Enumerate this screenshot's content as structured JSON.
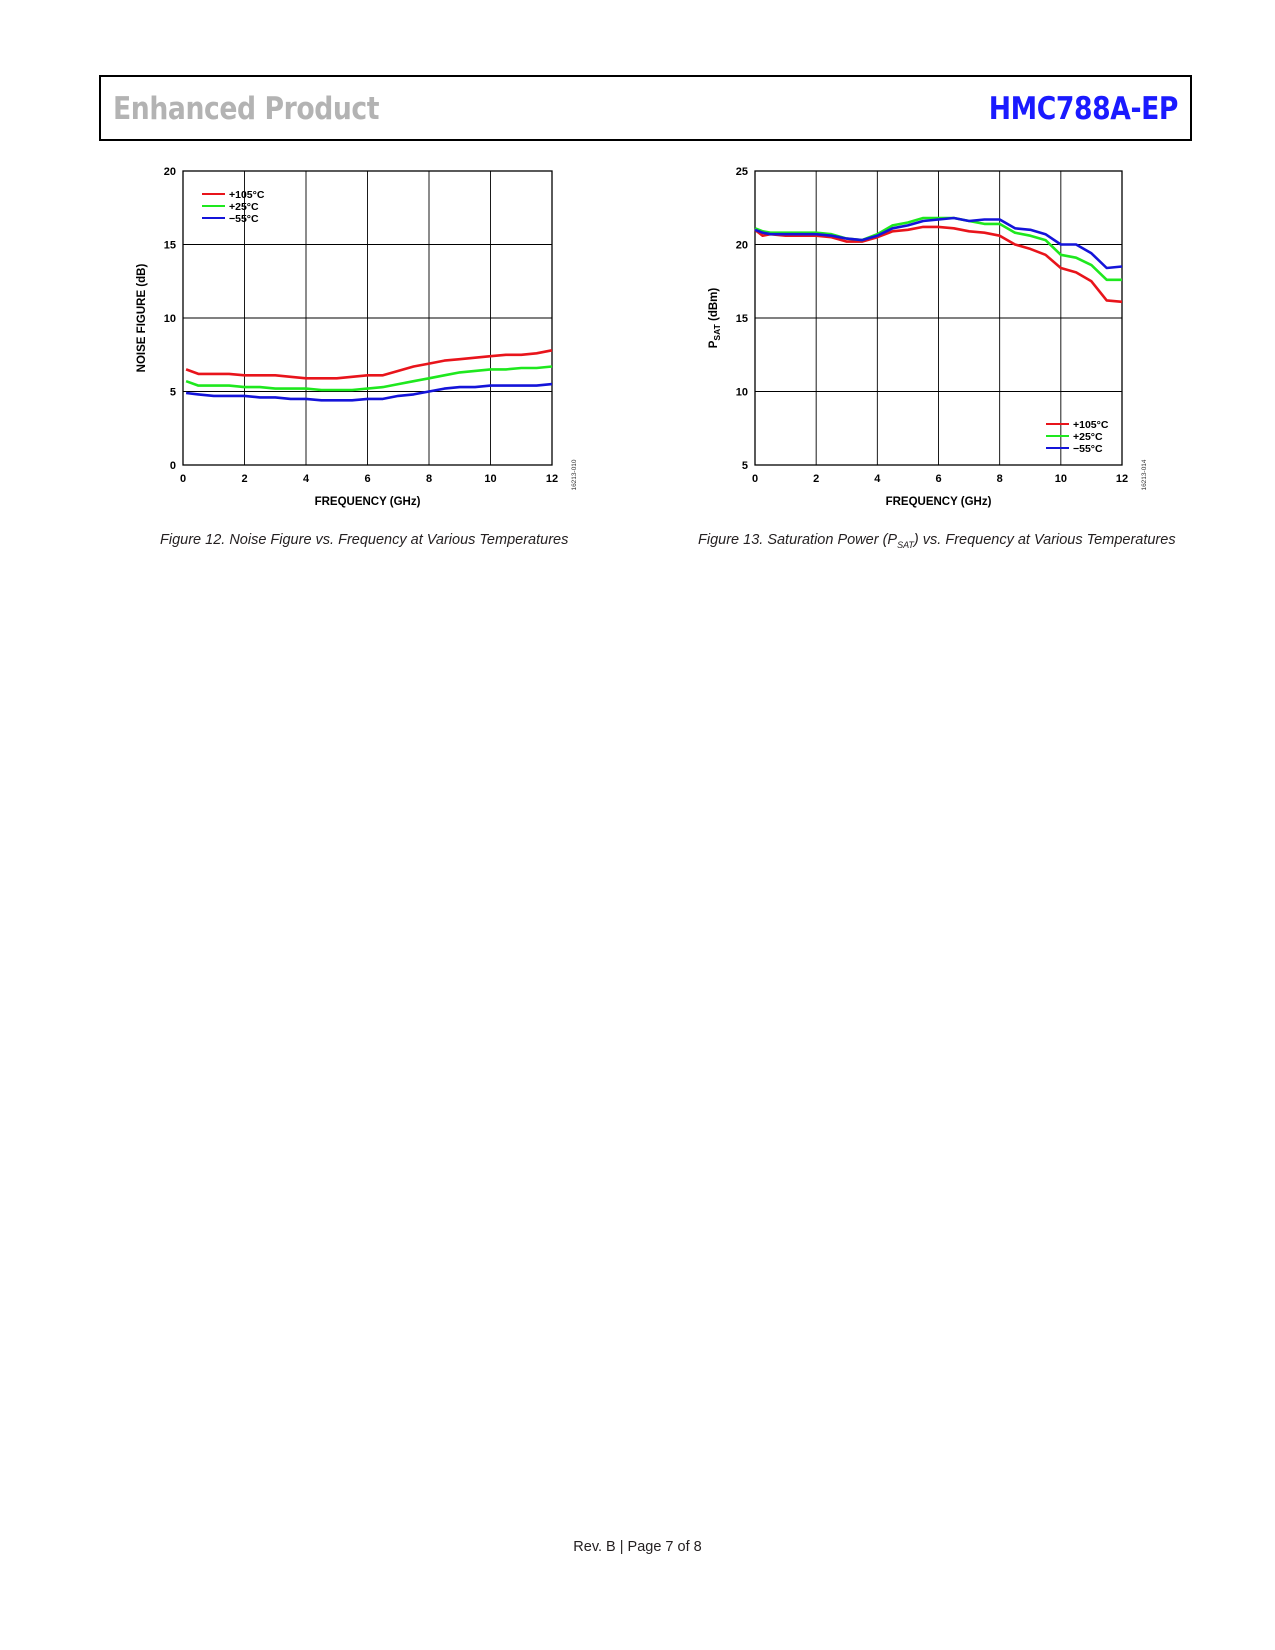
{
  "header": {
    "left_title": "Enhanced Product",
    "right_title": "HMC788A-EP"
  },
  "figures": [
    {
      "caption": "Figure 12. Noise Figure vs. Frequency at Various Temperatures"
    },
    {
      "caption_pre": "Figure 13. Saturation Power (P",
      "caption_sub": "SAT",
      "caption_post": ") vs. Frequency at Various Temperatures"
    }
  ],
  "footer": {
    "text": "Rev. B | Page 7 of 8"
  },
  "series_colors": {
    "+105°C": "#e8141b",
    "+25°C": "#1ee81e",
    "−55°C": "#1414d9"
  },
  "chart_data": [
    {
      "type": "line",
      "xlabel": "FREQUENCY (GHz)",
      "ylabel": "NOISE FIGURE (dB)",
      "xlim": [
        0,
        12
      ],
      "ylim": [
        0,
        20
      ],
      "xticks": [
        "0",
        "2",
        "4",
        "6",
        "8",
        "10",
        "12"
      ],
      "yticks": [
        "0",
        "5",
        "10",
        "15",
        "20"
      ],
      "grid": true,
      "legend_position": "top-left",
      "figure_id": "16213-010",
      "x": [
        0.1,
        0.5,
        1,
        1.5,
        2,
        2.5,
        3,
        3.5,
        4,
        4.5,
        5,
        5.5,
        6,
        6.5,
        7,
        7.5,
        8,
        8.5,
        9,
        9.5,
        10,
        10.5,
        11,
        11.5,
        12
      ],
      "series": [
        {
          "name": "+105°C",
          "color": "#e8141b",
          "values": [
            6.5,
            6.2,
            6.2,
            6.2,
            6.1,
            6.1,
            6.1,
            6.0,
            5.9,
            5.9,
            5.9,
            6.0,
            6.1,
            6.1,
            6.4,
            6.7,
            6.9,
            7.1,
            7.2,
            7.3,
            7.4,
            7.5,
            7.5,
            7.6,
            7.8
          ]
        },
        {
          "name": "+25°C",
          "color": "#1ee81e",
          "values": [
            5.7,
            5.4,
            5.4,
            5.4,
            5.3,
            5.3,
            5.2,
            5.2,
            5.2,
            5.1,
            5.1,
            5.1,
            5.2,
            5.3,
            5.5,
            5.7,
            5.9,
            6.1,
            6.3,
            6.4,
            6.5,
            6.5,
            6.6,
            6.6,
            6.7
          ]
        },
        {
          "name": "−55°C",
          "color": "#1414d9",
          "values": [
            4.9,
            4.8,
            4.7,
            4.7,
            4.7,
            4.6,
            4.6,
            4.5,
            4.5,
            4.4,
            4.4,
            4.4,
            4.5,
            4.5,
            4.7,
            4.8,
            5.0,
            5.2,
            5.3,
            5.3,
            5.4,
            5.4,
            5.4,
            5.4,
            5.5
          ]
        }
      ]
    },
    {
      "type": "line",
      "xlabel": "FREQUENCY (GHz)",
      "ylabel_main": "P",
      "ylabel_sub": "SAT",
      "ylabel_post": " (dBm)",
      "xlim": [
        0,
        12
      ],
      "ylim": [
        5,
        25
      ],
      "xticks": [
        "0",
        "2",
        "4",
        "6",
        "8",
        "10",
        "12"
      ],
      "yticks": [
        "5",
        "10",
        "15",
        "20",
        "25"
      ],
      "grid": true,
      "legend_position": "bottom-right",
      "figure_id": "16213-014",
      "x": [
        0,
        0.25,
        0.5,
        1,
        2,
        2.5,
        3,
        3.5,
        4,
        4.5,
        5,
        5.5,
        6,
        6.5,
        7,
        7.5,
        8,
        8.5,
        9,
        9.5,
        10,
        10.5,
        11,
        11.5,
        12
      ],
      "series": [
        {
          "name": "+105°C",
          "color": "#e8141b",
          "values": [
            21.0,
            20.6,
            20.7,
            20.6,
            20.6,
            20.5,
            20.2,
            20.2,
            20.5,
            20.9,
            21.0,
            21.2,
            21.2,
            21.1,
            20.9,
            20.8,
            20.6,
            20.0,
            19.7,
            19.3,
            18.4,
            18.1,
            17.5,
            16.2,
            16.1
          ]
        },
        {
          "name": "+25°C",
          "color": "#1ee81e",
          "values": [
            21.1,
            20.9,
            20.8,
            20.8,
            20.8,
            20.7,
            20.4,
            20.3,
            20.7,
            21.3,
            21.5,
            21.8,
            21.8,
            21.8,
            21.6,
            21.4,
            21.4,
            20.8,
            20.6,
            20.3,
            19.3,
            19.1,
            18.6,
            17.6,
            17.6
          ]
        },
        {
          "name": "−55°C",
          "color": "#1414d9",
          "values": [
            21.0,
            20.8,
            20.7,
            20.7,
            20.7,
            20.6,
            20.4,
            20.3,
            20.6,
            21.1,
            21.3,
            21.6,
            21.7,
            21.8,
            21.6,
            21.7,
            21.7,
            21.1,
            21.0,
            20.7,
            20.0,
            20.0,
            19.4,
            18.4,
            18.5
          ]
        }
      ]
    }
  ]
}
